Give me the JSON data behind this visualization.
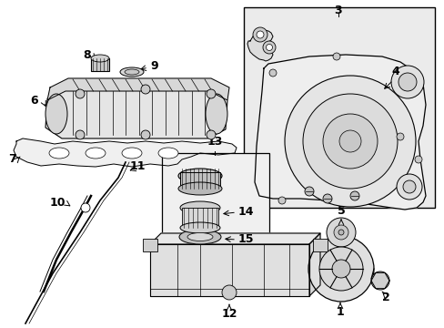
{
  "bg": "#ffffff",
  "lc": "#000000",
  "gray_fill": "#e8e8e8",
  "light_fill": "#f5f5f5",
  "box3_fill": "#ebebeb",
  "part_fill": "#e0e0e0"
}
